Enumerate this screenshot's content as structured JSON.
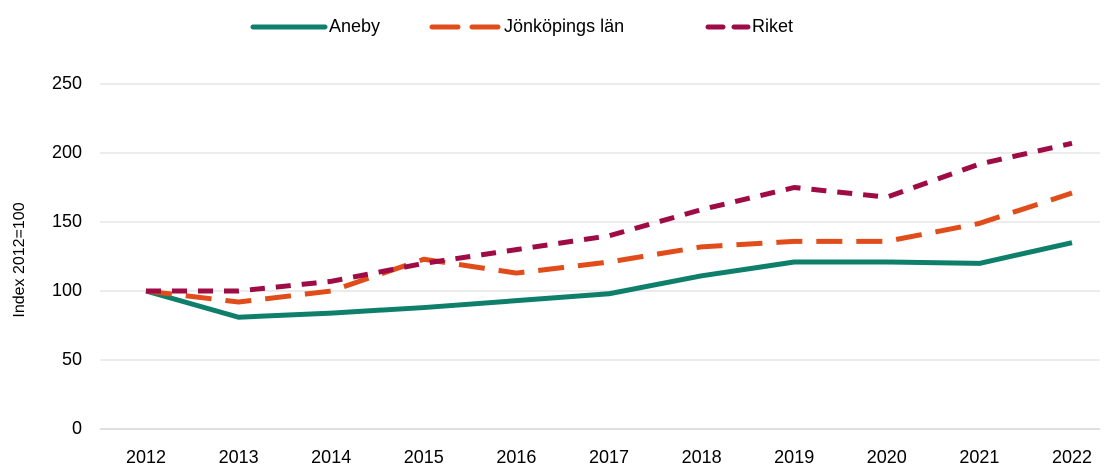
{
  "chart_data": {
    "type": "line",
    "y_label": "Index 2012=100",
    "x": [
      2012,
      2013,
      2014,
      2015,
      2016,
      2017,
      2018,
      2019,
      2020,
      2021,
      2022
    ],
    "xlim": [
      2012,
      2022
    ],
    "xticks": [
      2012,
      2013,
      2014,
      2015,
      2016,
      2017,
      2018,
      2019,
      2020,
      2021,
      2022
    ],
    "ylim": [
      0,
      250
    ],
    "yticks": [
      0,
      50,
      100,
      150,
      200,
      250
    ],
    "grid": true,
    "legend": "top",
    "series": [
      {
        "name": "Aneby",
        "color": "#0e7f6b",
        "dash": "solid",
        "values": [
          100,
          81,
          84,
          88,
          93,
          98,
          111,
          121,
          121,
          120,
          135
        ]
      },
      {
        "name": "Jönköpings län",
        "color": "#e04c1a",
        "dash": "long",
        "values": [
          100,
          92,
          100,
          123,
          113,
          121,
          132,
          136,
          136,
          149,
          171
        ]
      },
      {
        "name": "Riket",
        "color": "#9e0b45",
        "dash": "short",
        "values": [
          100,
          100,
          107,
          120,
          130,
          140,
          159,
          175,
          168,
          192,
          207
        ]
      }
    ]
  }
}
